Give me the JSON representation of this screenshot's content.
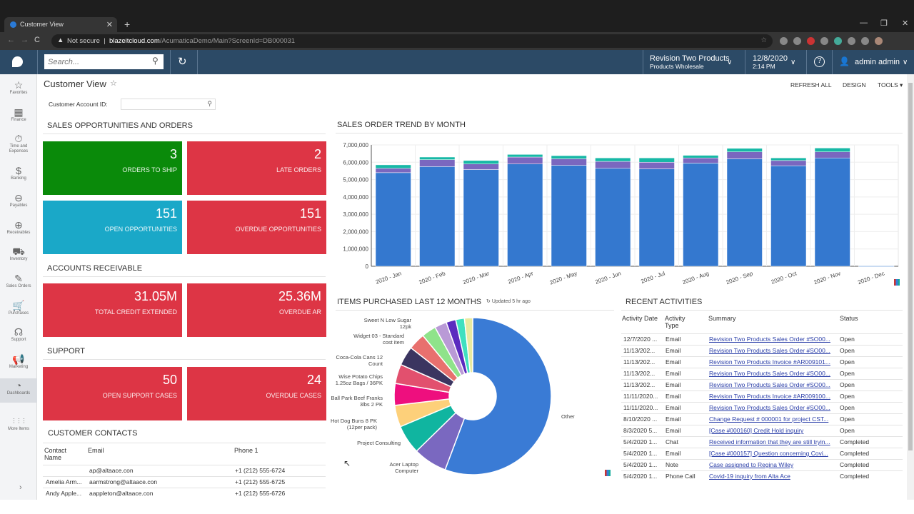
{
  "browser": {
    "tab_title": "Customer View",
    "new_tab": "+",
    "security": "Not secure",
    "url_host": "blazeitcloud.com",
    "url_path": "/AcumaticaDemo/Main?ScreenId=DB000031"
  },
  "header": {
    "search_placeholder": "Search...",
    "company": "Revision Two Products",
    "branch": "Products Wholesale",
    "date": "12/8/2020",
    "time": "2:14 PM",
    "user": "admin admin"
  },
  "sidebar": {
    "items": [
      {
        "label": "Favorites",
        "icon": "☆"
      },
      {
        "label": "Finance",
        "icon": "▦"
      },
      {
        "label": "Time and Expenses",
        "icon": "⏱"
      },
      {
        "label": "Banking",
        "icon": "$"
      },
      {
        "label": "Payables",
        "icon": "⊖"
      },
      {
        "label": "Receivables",
        "icon": "⊕"
      },
      {
        "label": "Inventory",
        "icon": "⛟"
      },
      {
        "label": "Sales Orders",
        "icon": "✎"
      },
      {
        "label": "Purchases",
        "icon": "🛒"
      },
      {
        "label": "Support",
        "icon": "☊"
      },
      {
        "label": "Marketing",
        "icon": "📢"
      },
      {
        "label": "Dashboards",
        "icon": "◔"
      },
      {
        "label": "More Items",
        "icon": "⋮⋮⋮"
      }
    ],
    "active": "Dashboards"
  },
  "page": {
    "title": "Customer View",
    "refresh_all": "REFRESH ALL",
    "design": "DESIGN",
    "tools": "TOOLS",
    "customer_account_label": "Customer Account ID:",
    "customer_account_value": ""
  },
  "sales": {
    "title": "SALES OPPORTUNITIES AND ORDERS",
    "tiles": [
      {
        "value": "3",
        "label": "ORDERS TO SHIP",
        "color": "#0a8a0a"
      },
      {
        "value": "2",
        "label": "LATE ORDERS",
        "color": "#dd3545"
      },
      {
        "value": "151",
        "label": "OPEN OPPORTUNITIES",
        "color": "#1aa8c8"
      },
      {
        "value": "151",
        "label": "OVERDUE OPPORTUNITIES",
        "color": "#dd3545"
      }
    ]
  },
  "ar": {
    "title": "ACCOUNTS RECEIVABLE",
    "tiles": [
      {
        "value": "31.05M",
        "label": "TOTAL CREDIT EXTENDED"
      },
      {
        "value": "25.36M",
        "label": "OVERDUE AR"
      }
    ]
  },
  "support": {
    "title": "SUPPORT",
    "tiles": [
      {
        "value": "50",
        "label": "OPEN SUPPORT CASES"
      },
      {
        "value": "24",
        "label": "OVERDUE CASES"
      }
    ]
  },
  "contacts": {
    "title": "CUSTOMER CONTACTS",
    "headers": [
      "Contact Name",
      "Email",
      "Phone 1"
    ],
    "rows": [
      [
        "",
        "ap@altaace.con",
        "+1 (212) 555-6724"
      ],
      [
        "Amelia Arm...",
        "aarmstrong@altaace.con",
        "+1 (212) 555-6725"
      ],
      [
        "Andy Apple...",
        "aappleton@altaace.con",
        "+1 (212) 555-6726"
      ]
    ]
  },
  "trend": {
    "title": "SALES ORDER TREND BY MONTH"
  },
  "items": {
    "title": "ITEMS PURCHASED LAST 12 MONTHS",
    "updated": "Updated 5 hr ago"
  },
  "activities": {
    "title": "RECENT ACTIVITIES",
    "headers": [
      "Activity Date",
      "Activity Type",
      "Summary",
      "Status"
    ],
    "rows": [
      [
        "12/7/2020 ...",
        "Email",
        "Revision Two Products Sales Order #SO00...",
        "Open"
      ],
      [
        "11/13/202...",
        "Email",
        "Revision Two Products Sales Order #SO00...",
        "Open"
      ],
      [
        "11/13/202...",
        "Email",
        "Revision Two Products Invoice #AR009101...",
        "Open"
      ],
      [
        "11/13/202...",
        "Email",
        "Revision Two Products Sales Order #SO00...",
        "Open"
      ],
      [
        "11/13/202...",
        "Email",
        "Revision Two Products Sales Order #SO00...",
        "Open"
      ],
      [
        "11/11/2020...",
        "Email",
        "Revision Two Products Invoice #AR009100...",
        "Open"
      ],
      [
        "11/11/2020...",
        "Email",
        "Revision Two Products Sales Order #SO00...",
        "Open"
      ],
      [
        "8/10/2020 ...",
        "Email",
        "Change Request # 000001 for project CST...",
        "Open"
      ],
      [
        "8/3/2020 5...",
        "Email",
        "[Case #000160] Credit Hold inquiry",
        "Open"
      ],
      [
        "5/4/2020 1...",
        "Chat",
        "Received information that they are still tryin...",
        "Completed"
      ],
      [
        "5/4/2020 1...",
        "Email",
        "[Case #000157] Question concerning Covi...",
        "Completed"
      ],
      [
        "5/4/2020 1...",
        "Note",
        "Case assigned to Regina Wiley",
        "Completed"
      ],
      [
        "5/4/2020 1...",
        "Phone Call",
        "Covid-19 inquiry from Alta Ace",
        "Completed"
      ]
    ]
  },
  "chart_data": [
    {
      "type": "bar",
      "stacked": true,
      "title": "SALES ORDER TREND BY MONTH",
      "categories": [
        "2020 - Jan",
        "2020 - Feb",
        "2020 - Mar",
        "2020 - Apr",
        "2020 - May",
        "2020 - Jun",
        "2020 - Jul",
        "2020 - Aug",
        "2020 - Sep",
        "2020 - Oct",
        "2020 - Nov",
        "2020 - Dec"
      ],
      "series": [
        {
          "values": [
            5400000,
            5750000,
            5580000,
            5900000,
            5820000,
            5650000,
            5620000,
            5950000,
            6200000,
            5800000,
            6250000,
            20000
          ],
          "color": "#3478cf"
        },
        {
          "values": [
            250000,
            400000,
            320000,
            400000,
            380000,
            400000,
            380000,
            300000,
            400000,
            300000,
            350000,
            0
          ],
          "color": "#7a67bf"
        },
        {
          "values": [
            200000,
            150000,
            200000,
            150000,
            180000,
            200000,
            250000,
            150000,
            200000,
            150000,
            220000,
            0
          ],
          "color": "#17b8a6"
        }
      ],
      "ylim": [
        0,
        7000000
      ],
      "yticks": [
        "0",
        "1,000,000",
        "2,000,000",
        "3,000,000",
        "4,000,000",
        "5,000,000",
        "6,000,000",
        "7,000,000"
      ],
      "grid": true,
      "legend": "none"
    },
    {
      "type": "pie",
      "donut": true,
      "title": "ITEMS PURCHASED LAST 12 MONTHS",
      "slices": [
        {
          "label": "Other",
          "value": 56,
          "color": "#3a7bd5"
        },
        {
          "label": "Acer Laptop Computer",
          "value": 7,
          "color": "#7a68c0"
        },
        {
          "label": "Project Consulting",
          "value": 6,
          "color": "#10b5a0"
        },
        {
          "label": "Hot Dog Buns 8 PK (12per pack)",
          "value": 4.5,
          "color": "#fdd07a"
        },
        {
          "label": "Ball Park Beef Franks 3lbs 2 PK",
          "value": 4.5,
          "color": "#ee0f7e"
        },
        {
          "label": "Wise Potato Chips 1.25oz Bags / 36PK",
          "value": 4,
          "color": "#e2506e"
        },
        {
          "label": "Coca-Cola Cans 12 Count",
          "value": 4,
          "color": "#3b3560"
        },
        {
          "label": "Widget 03 - Standard cost item",
          "value": 3.5,
          "color": "#e8706e"
        },
        {
          "label": "Sweet N Low Sugar 12pk",
          "value": 3,
          "color": "#8fe38a"
        },
        {
          "label": "",
          "value": 2.5,
          "color": "#b99ad6"
        },
        {
          "label": "",
          "value": 2,
          "color": "#5b2bbf"
        },
        {
          "label": "",
          "value": 1.8,
          "color": "#3fe0c0"
        },
        {
          "label": "",
          "value": 1.7,
          "color": "#e8eaa0"
        }
      ]
    }
  ]
}
